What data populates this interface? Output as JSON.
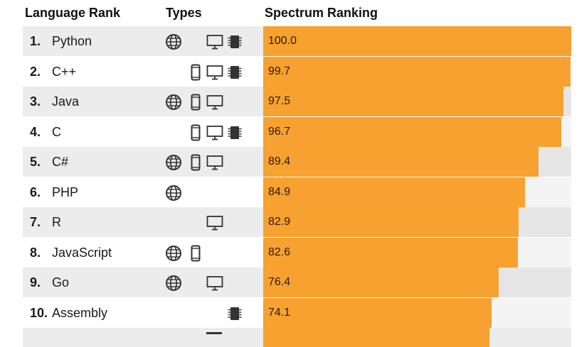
{
  "chart_data": {
    "type": "bar",
    "orientation": "horizontal",
    "title": "",
    "columns": [
      "Language Rank",
      "Types",
      "Spectrum Ranking"
    ],
    "categories": [
      "Python",
      "C++",
      "Java",
      "C",
      "C#",
      "PHP",
      "R",
      "JavaScript",
      "Go",
      "Assembly"
    ],
    "ranks": [
      "1.",
      "2.",
      "3.",
      "4.",
      "5.",
      "6.",
      "7.",
      "8.",
      "9.",
      "10."
    ],
    "values": [
      100.0,
      99.7,
      97.5,
      96.7,
      89.4,
      84.9,
      82.9,
      82.6,
      76.4,
      74.1
    ],
    "value_labels": [
      "100.0",
      "99.7",
      "97.5",
      "96.7",
      "89.4",
      "84.9",
      "82.9",
      "82.6",
      "76.4",
      "74.1"
    ],
    "types": [
      [
        "web",
        "desktop",
        "embedded"
      ],
      [
        "mobile",
        "desktop",
        "embedded"
      ],
      [
        "web",
        "mobile",
        "desktop"
      ],
      [
        "mobile",
        "desktop",
        "embedded"
      ],
      [
        "web",
        "mobile",
        "desktop"
      ],
      [
        "web"
      ],
      [
        "desktop"
      ],
      [
        "web",
        "mobile"
      ],
      [
        "web",
        "desktop"
      ],
      [
        "embedded"
      ]
    ],
    "type_icons": {
      "web": "globe-icon",
      "mobile": "mobile-phone-icon",
      "desktop": "desktop-monitor-icon",
      "embedded": "chip-icon"
    },
    "xlim": [
      0,
      100
    ],
    "grid": false,
    "legend": "none",
    "truncated_next_row_value": 73.5
  },
  "colors": {
    "bar": "#F7A130",
    "row_odd": "#ececec",
    "row_even": "#ffffff",
    "track_odd": "#e6e6e6",
    "track_even": "#f4f4f4",
    "icon": "#333333"
  }
}
